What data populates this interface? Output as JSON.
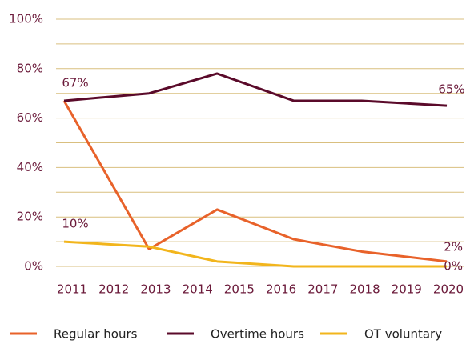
{
  "chart_data": {
    "type": "line",
    "x": [
      2011,
      2013,
      2014.6,
      2016.4,
      2018,
      2020
    ],
    "xlim": [
      2011,
      2020
    ],
    "xticks": [
      2011,
      2012,
      2013,
      2014,
      2015,
      2016,
      2017,
      2018,
      2019,
      2020
    ],
    "ylim": [
      0,
      100
    ],
    "yticks": [
      {
        "value": 0,
        "label": "0%"
      },
      {
        "value": 20,
        "label": "20%"
      },
      {
        "value": 40,
        "label": "40%"
      },
      {
        "value": 60,
        "label": "60%"
      },
      {
        "value": 80,
        "label": "80%"
      },
      {
        "value": 100,
        "label": "100%"
      }
    ],
    "minor_yticks": [
      10,
      30,
      50,
      70,
      90
    ],
    "grid": true,
    "legend": "bottom",
    "series": [
      {
        "name": "Regular hours",
        "color": "#e8622a",
        "values": [
          67,
          7,
          23,
          11,
          6,
          2
        ],
        "value_labels": [
          null,
          null,
          null,
          null,
          null,
          "2%"
        ]
      },
      {
        "name": "Overtime hours",
        "color": "#5a0a2a",
        "values": [
          67,
          70,
          78,
          67,
          67,
          65
        ],
        "value_labels": [
          "67%",
          null,
          null,
          null,
          null,
          "65%"
        ]
      },
      {
        "name": "OT voluntary",
        "color": "#f2b51c",
        "values": [
          10,
          8,
          2,
          0,
          0,
          0
        ],
        "value_labels": [
          "10%",
          null,
          null,
          null,
          null,
          "0%"
        ]
      }
    ]
  }
}
